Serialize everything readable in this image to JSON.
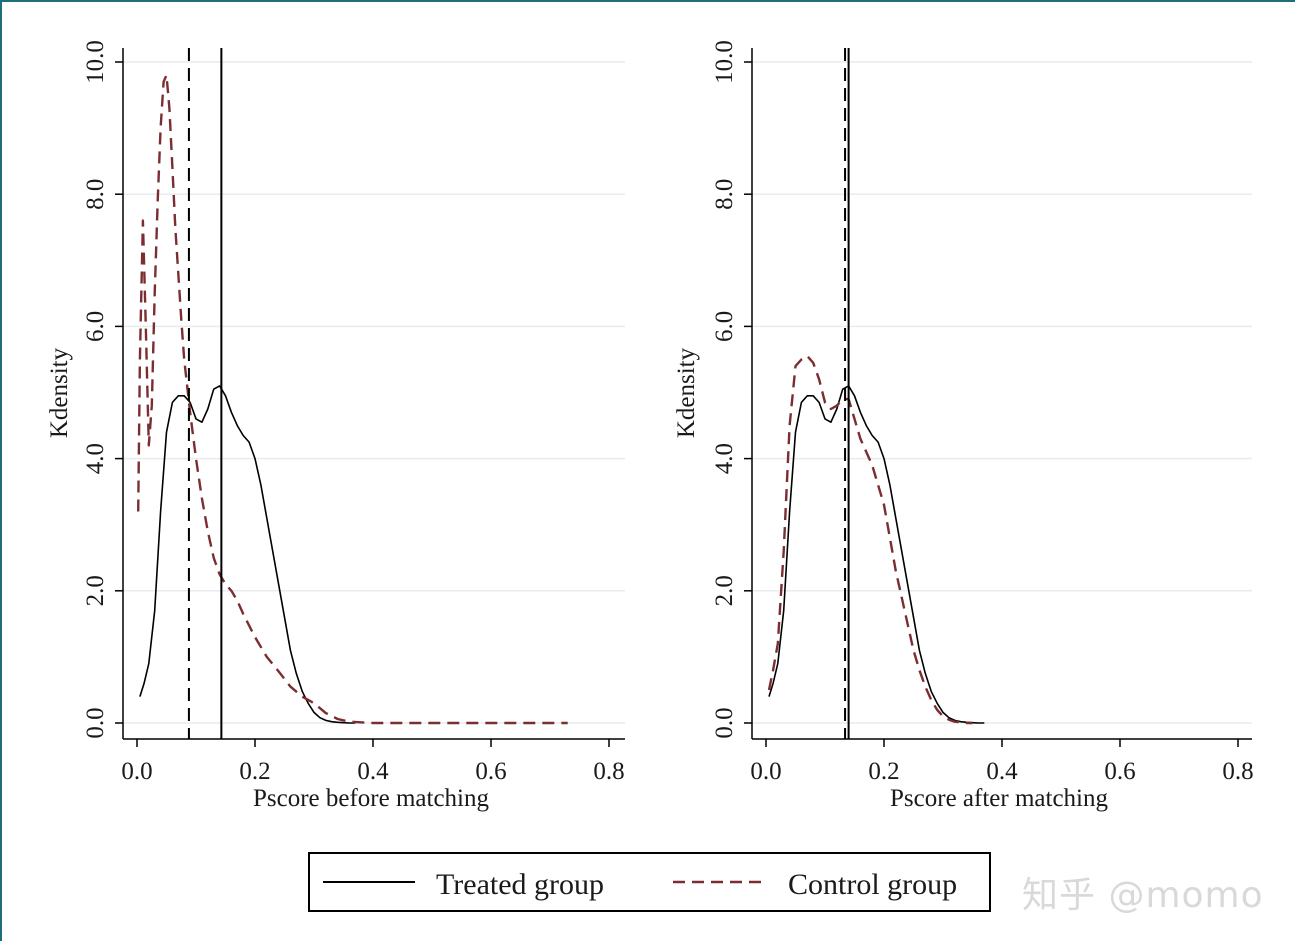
{
  "chart_data": [
    {
      "type": "line",
      "xlabel": "Pscore before matching",
      "ylabel": "Kdensity",
      "xlim": [
        0.0,
        0.8
      ],
      "ylim": [
        0.0,
        10.0
      ],
      "xticks": [
        "0.0",
        "0.2",
        "0.4",
        "0.6",
        "0.8"
      ],
      "yticks": [
        "0.0",
        "2.0",
        "4.0",
        "6.0",
        "8.0",
        "10.0"
      ],
      "grid": true,
      "series": [
        {
          "name": "Treated group",
          "style": "solid",
          "color": "#000000",
          "x": [
            0.005,
            0.012,
            0.02,
            0.03,
            0.04,
            0.05,
            0.06,
            0.07,
            0.08,
            0.09,
            0.1,
            0.11,
            0.12,
            0.13,
            0.14,
            0.15,
            0.16,
            0.17,
            0.18,
            0.19,
            0.2,
            0.21,
            0.22,
            0.23,
            0.24,
            0.25,
            0.26,
            0.27,
            0.28,
            0.29,
            0.3,
            0.31,
            0.32,
            0.33,
            0.34,
            0.35,
            0.36,
            0.37
          ],
          "y": [
            0.4,
            0.6,
            0.9,
            1.7,
            3.2,
            4.4,
            4.85,
            4.95,
            4.95,
            4.85,
            4.6,
            4.55,
            4.75,
            5.05,
            5.1,
            4.95,
            4.7,
            4.5,
            4.35,
            4.25,
            4.0,
            3.6,
            3.1,
            2.6,
            2.1,
            1.6,
            1.1,
            0.75,
            0.48,
            0.3,
            0.16,
            0.08,
            0.04,
            0.02,
            0.01,
            0.005,
            0.0,
            0.0
          ]
        },
        {
          "name": "Control group",
          "style": "dashed",
          "color": "#7b2e32",
          "x": [
            0.002,
            0.005,
            0.01,
            0.015,
            0.02,
            0.025,
            0.03,
            0.035,
            0.04,
            0.045,
            0.05,
            0.055,
            0.06,
            0.065,
            0.07,
            0.075,
            0.08,
            0.09,
            0.1,
            0.11,
            0.12,
            0.13,
            0.14,
            0.15,
            0.16,
            0.17,
            0.18,
            0.2,
            0.22,
            0.24,
            0.26,
            0.28,
            0.3,
            0.32,
            0.34,
            0.36,
            0.4,
            0.5,
            0.6,
            0.7,
            0.73
          ],
          "y": [
            3.2,
            5.5,
            7.6,
            6.0,
            4.2,
            4.8,
            6.5,
            7.9,
            9.0,
            9.7,
            9.8,
            9.3,
            8.4,
            7.5,
            6.8,
            6.1,
            5.5,
            4.7,
            4.0,
            3.4,
            2.9,
            2.5,
            2.25,
            2.1,
            2.0,
            1.85,
            1.65,
            1.3,
            1.0,
            0.78,
            0.55,
            0.4,
            0.3,
            0.15,
            0.06,
            0.02,
            0.0,
            0.0,
            0.0,
            0.0,
            0.0
          ]
        }
      ],
      "vlines": [
        {
          "series": "Control group",
          "x": 0.088,
          "style": "dashed"
        },
        {
          "series": "Treated group",
          "x": 0.143,
          "style": "solid"
        }
      ]
    },
    {
      "type": "line",
      "xlabel": "Pscore after matching",
      "ylabel": "Kdensity",
      "xlim": [
        0.0,
        0.8
      ],
      "ylim": [
        0.0,
        10.0
      ],
      "xticks": [
        "0.0",
        "0.2",
        "0.4",
        "0.6",
        "0.8"
      ],
      "yticks": [
        "0.0",
        "2.0",
        "4.0",
        "6.0",
        "8.0",
        "10.0"
      ],
      "grid": true,
      "series": [
        {
          "name": "Treated group",
          "style": "solid",
          "color": "#000000",
          "x": [
            0.005,
            0.012,
            0.02,
            0.03,
            0.04,
            0.05,
            0.06,
            0.07,
            0.08,
            0.09,
            0.1,
            0.11,
            0.12,
            0.13,
            0.14,
            0.15,
            0.16,
            0.17,
            0.18,
            0.19,
            0.2,
            0.21,
            0.22,
            0.23,
            0.24,
            0.25,
            0.26,
            0.27,
            0.28,
            0.29,
            0.3,
            0.31,
            0.32,
            0.33,
            0.34,
            0.35,
            0.36,
            0.37
          ],
          "y": [
            0.4,
            0.6,
            0.9,
            1.7,
            3.2,
            4.4,
            4.85,
            4.95,
            4.95,
            4.85,
            4.6,
            4.55,
            4.75,
            5.05,
            5.1,
            4.95,
            4.7,
            4.5,
            4.35,
            4.25,
            4.0,
            3.6,
            3.1,
            2.6,
            2.1,
            1.6,
            1.1,
            0.75,
            0.48,
            0.3,
            0.16,
            0.08,
            0.04,
            0.02,
            0.01,
            0.005,
            0.0,
            0.0
          ]
        },
        {
          "name": "Control group",
          "style": "dashed",
          "color": "#7b2e32",
          "x": [
            0.005,
            0.012,
            0.02,
            0.03,
            0.04,
            0.05,
            0.06,
            0.07,
            0.08,
            0.09,
            0.1,
            0.11,
            0.12,
            0.13,
            0.14,
            0.15,
            0.16,
            0.17,
            0.18,
            0.19,
            0.2,
            0.21,
            0.22,
            0.23,
            0.24,
            0.25,
            0.26,
            0.27,
            0.28,
            0.29,
            0.3,
            0.31,
            0.32,
            0.33,
            0.34,
            0.35
          ],
          "y": [
            0.5,
            0.8,
            1.2,
            2.6,
            4.5,
            5.4,
            5.5,
            5.55,
            5.45,
            5.2,
            4.85,
            4.75,
            4.8,
            4.9,
            4.9,
            4.6,
            4.3,
            4.1,
            3.9,
            3.6,
            3.3,
            2.8,
            2.3,
            1.9,
            1.5,
            1.1,
            0.8,
            0.55,
            0.35,
            0.2,
            0.1,
            0.05,
            0.02,
            0.01,
            0.0,
            0.0
          ]
        }
      ],
      "vlines": [
        {
          "series": "Control group",
          "x": 0.134,
          "style": "dashed"
        },
        {
          "series": "Treated group",
          "x": 0.14,
          "style": "solid"
        }
      ]
    }
  ],
  "legend": {
    "placement": "bottom-center",
    "items": [
      {
        "label": "Treated group",
        "style": "solid",
        "color": "#000000"
      },
      {
        "label": "Control group",
        "style": "dashed",
        "color": "#7b2e32"
      }
    ]
  },
  "watermark": "知乎 @momo",
  "colors": {
    "frame": "#1f6f7a",
    "grid": "#e6ecef",
    "treated": "#000000",
    "control": "#7b2e32"
  }
}
